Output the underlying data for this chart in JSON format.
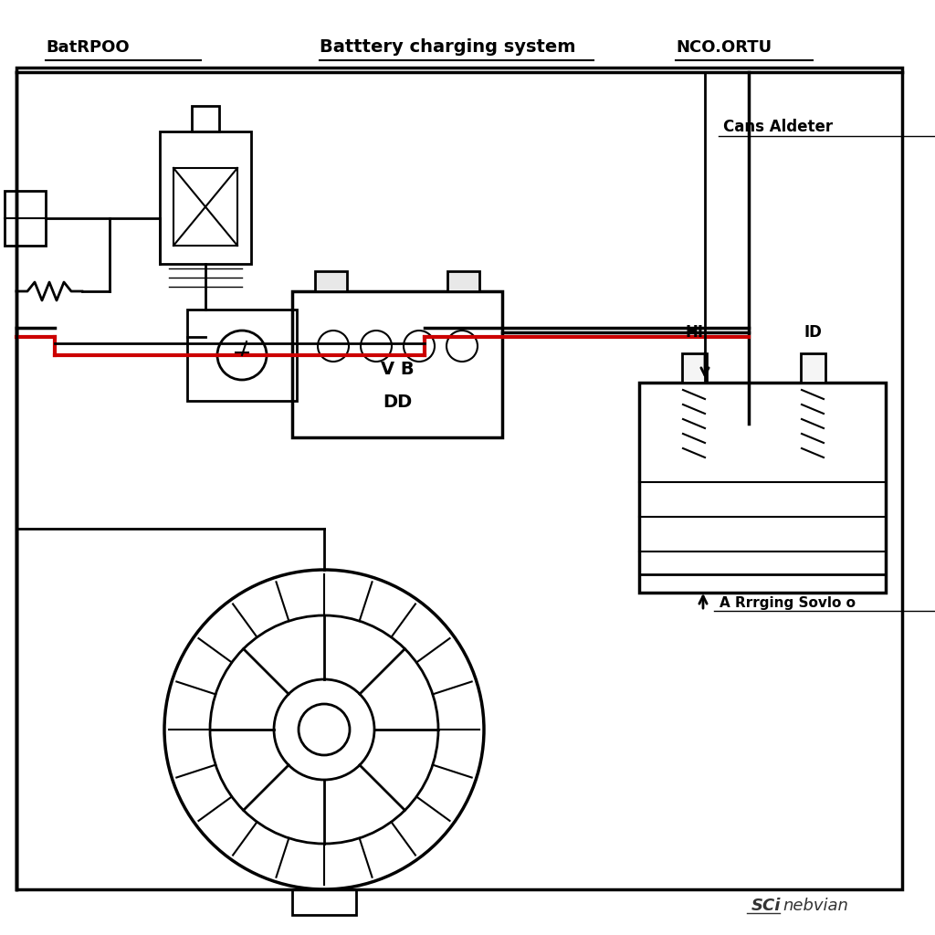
{
  "title": "Batttery charging system",
  "label_left": "BatRPOO",
  "label_right": "NCO.ORTU",
  "label_cans": "Cans Aldeter",
  "label_hi": "HI",
  "label_id": "ID",
  "label_charging": "A Rrrging Sovlo o",
  "label_vb_dd_1": "V B",
  "label_vb_dd_2": "DD",
  "bg_color": "#ffffff",
  "line_color": "#000000",
  "red_color": "#cc0000",
  "watermark_sci": "SCi",
  "watermark_rest": "nebvian"
}
